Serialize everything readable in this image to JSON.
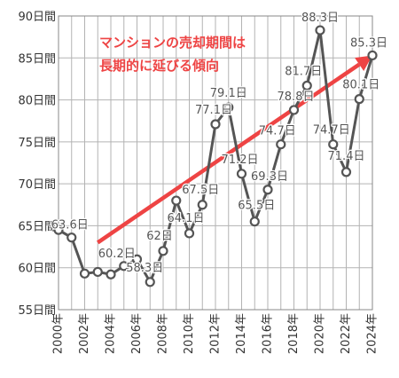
{
  "chart_data": {
    "type": "line",
    "x": [
      "2000年",
      "2001年",
      "2002年",
      "2003年",
      "2004年",
      "2005年",
      "2006年",
      "2007年",
      "2008年",
      "2009年",
      "2010年",
      "2011年",
      "2012年",
      "2013年",
      "2014年",
      "2015年",
      "2016年",
      "2017年",
      "2018年",
      "2019年",
      "2020年",
      "2021年",
      "2022年",
      "2023年",
      "2024年"
    ],
    "x_tick_labels": [
      "2000年",
      "2002年",
      "2004年",
      "2006年",
      "2008年",
      "2010年",
      "2012年",
      "2014年",
      "2016年",
      "2018年",
      "2020年",
      "2022年",
      "2024年"
    ],
    "values": [
      64.5,
      63.6,
      59.3,
      59.5,
      59.2,
      60.2,
      61.0,
      58.3,
      62.0,
      68.0,
      64.1,
      67.5,
      77.1,
      79.1,
      71.2,
      65.5,
      69.3,
      74.7,
      78.8,
      81.7,
      88.3,
      74.7,
      71.4,
      80.1,
      85.3
    ],
    "data_labels": [
      {
        "index": 1,
        "text": "63.6日"
      },
      {
        "index": 5,
        "text": "60.2日"
      },
      {
        "index": 7,
        "text": "58.3日"
      },
      {
        "index": 8,
        "text": "62日"
      },
      {
        "index": 10,
        "text": "64.1日"
      },
      {
        "index": 11,
        "text": "67.5日"
      },
      {
        "index": 12,
        "text": "77.1日"
      },
      {
        "index": 13,
        "text": "79.1日"
      },
      {
        "index": 14,
        "text": "71.2日"
      },
      {
        "index": 15,
        "text": "65.5日"
      },
      {
        "index": 16,
        "text": "69.3日"
      },
      {
        "index": 17,
        "text": "74.7日"
      },
      {
        "index": 18,
        "text": "78.8日"
      },
      {
        "index": 19,
        "text": "81.7日"
      },
      {
        "index": 20,
        "text": "88.3日"
      },
      {
        "index": 21,
        "text": "74.7日"
      },
      {
        "index": 22,
        "text": "71.4日"
      },
      {
        "index": 23,
        "text": "80.1日"
      },
      {
        "index": 24,
        "text": "85.3日"
      }
    ],
    "y_ticks": [
      55,
      60,
      65,
      70,
      75,
      80,
      85,
      90
    ],
    "y_tick_labels": [
      "55日間",
      "60日間",
      "65日間",
      "70日間",
      "75日間",
      "80日間",
      "85日間",
      "90日間"
    ],
    "ylim": [
      55,
      90
    ],
    "grid": true,
    "line_color": "#555555",
    "marker_fill": "#ffffff",
    "annotation": {
      "lines": [
        "マンションの売却期間は",
        "長期的に延びる傾向"
      ],
      "color": "#ee4444",
      "arrow": {
        "from": {
          "x": "2003年",
          "y": 63.0
        },
        "to": {
          "x": "2024年",
          "y": 85.3
        }
      }
    }
  }
}
